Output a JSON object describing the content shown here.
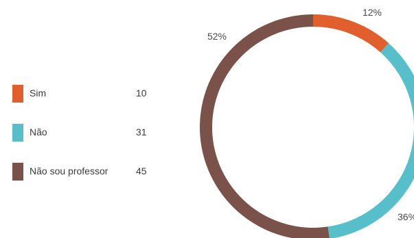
{
  "chart_data": {
    "type": "pie",
    "style": "donut",
    "legend_placement": "left",
    "slices": [
      {
        "label": "Sim",
        "value": 10,
        "percent_label": "12%",
        "color": "#e15f2c"
      },
      {
        "label": "Não",
        "value": 31,
        "percent_label": "36%",
        "color": "#57bfc9"
      },
      {
        "label": "Não sou professor",
        "value": 45,
        "percent_label": "52%",
        "color": "#7a5249"
      }
    ]
  }
}
